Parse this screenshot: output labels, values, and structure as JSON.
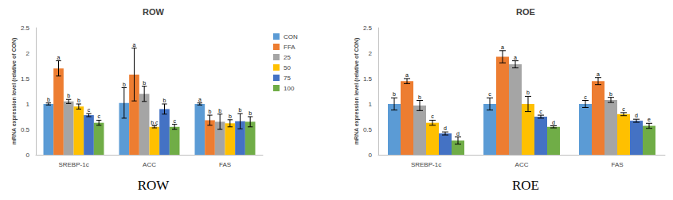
{
  "chart_data": [
    {
      "type": "bar",
      "title": "ROW",
      "caption": "ROW",
      "y_label": "mRNA expression level (relative of CON)",
      "categories": [
        "SREBP-1c",
        "ACC",
        "FAS"
      ],
      "ylim": [
        0,
        2.5
      ],
      "yticks": [
        0,
        0.5,
        1,
        1.5,
        2,
        2.5
      ],
      "grid": false,
      "legend": "right",
      "series": [
        {
          "name": "CON",
          "color": "#5b9bd5",
          "values": [
            1.0,
            1.02,
            1.0
          ],
          "errors": [
            0.02,
            0.3,
            0.02
          ],
          "letters": [
            "b",
            "b",
            "a"
          ]
        },
        {
          "name": "FFA",
          "color": "#ed7d31",
          "values": [
            1.7,
            1.58,
            0.68
          ],
          "errors": [
            0.15,
            0.52,
            0.1
          ],
          "letters": [
            "a",
            "a",
            "b"
          ]
        },
        {
          "name": "25",
          "color": "#a5a5a5",
          "values": [
            1.05,
            1.2,
            0.65
          ],
          "errors": [
            0.04,
            0.15,
            0.15
          ],
          "letters": [
            "b",
            "b",
            "b"
          ]
        },
        {
          "name": "50",
          "color": "#ffc000",
          "values": [
            0.95,
            0.55,
            0.62
          ],
          "errors": [
            0.05,
            0.02,
            0.07
          ],
          "letters": [
            "b",
            "b,c",
            "b"
          ]
        },
        {
          "name": "75",
          "color": "#4472c4",
          "values": [
            0.78,
            0.9,
            0.66
          ],
          "errors": [
            0.03,
            0.1,
            0.15
          ],
          "letters": [
            "c",
            "b",
            "b"
          ]
        },
        {
          "name": "100",
          "color": "#70ad47",
          "values": [
            0.63,
            0.55,
            0.65
          ],
          "errors": [
            0.05,
            0.05,
            0.1
          ],
          "letters": [
            "c",
            "c",
            "b"
          ]
        }
      ]
    },
    {
      "type": "bar",
      "title": "ROE",
      "caption": "ROE",
      "y_label": "mRNA expression level (relative of CON)",
      "categories": [
        "SREBP-1c",
        "ACC",
        "FAS"
      ],
      "ylim": [
        0,
        2.5
      ],
      "yticks": [
        0,
        0.5,
        1,
        1.5,
        2,
        2.5
      ],
      "grid": false,
      "series": [
        {
          "name": "CON",
          "color": "#5b9bd5",
          "values": [
            1.0,
            1.0,
            1.0
          ],
          "errors": [
            0.12,
            0.12,
            0.07
          ],
          "letters": [
            "b",
            "c",
            "c"
          ]
        },
        {
          "name": "FFA",
          "color": "#ed7d31",
          "values": [
            1.45,
            1.93,
            1.45
          ],
          "errors": [
            0.05,
            0.12,
            0.07
          ],
          "letters": [
            "a",
            "a",
            "a"
          ]
        },
        {
          "name": "25",
          "color": "#a5a5a5",
          "values": [
            0.97,
            1.78,
            1.08
          ],
          "errors": [
            0.1,
            0.07,
            0.05
          ],
          "letters": [
            "b",
            "a",
            "b"
          ]
        },
        {
          "name": "50",
          "color": "#ffc000",
          "values": [
            0.63,
            1.0,
            0.8
          ],
          "errors": [
            0.05,
            0.15,
            0.03
          ],
          "letters": [
            "c",
            "b",
            "c"
          ]
        },
        {
          "name": "75",
          "color": "#4472c4",
          "values": [
            0.42,
            0.75,
            0.67
          ],
          "errors": [
            0.03,
            0.03,
            0.03
          ],
          "letters": [
            "d",
            "c",
            "d"
          ]
        },
        {
          "name": "100",
          "color": "#70ad47",
          "values": [
            0.28,
            0.55,
            0.57
          ],
          "errors": [
            0.07,
            0.02,
            0.05
          ],
          "letters": [
            "d",
            "d",
            "e"
          ]
        }
      ]
    }
  ]
}
